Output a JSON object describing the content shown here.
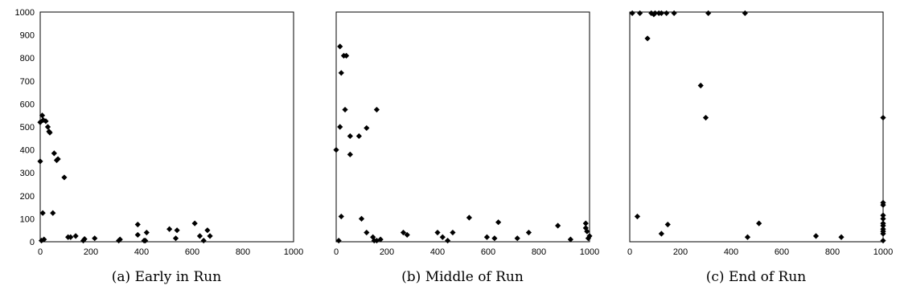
{
  "chart_data": [
    {
      "type": "scatter",
      "caption": "(a) Early in Run",
      "xlim": [
        0,
        1000
      ],
      "ylim": [
        0,
        1000
      ],
      "x_ticks": [
        "0",
        "200",
        "400",
        "600",
        "800",
        "1000"
      ],
      "y_ticks": [
        "0",
        "100",
        "200",
        "300",
        "400",
        "500",
        "600",
        "700",
        "800",
        "900",
        "1000"
      ],
      "marker": "diamond",
      "points": [
        [
          0,
          520
        ],
        [
          8,
          550
        ],
        [
          12,
          530
        ],
        [
          22,
          525
        ],
        [
          30,
          500
        ],
        [
          35,
          480
        ],
        [
          38,
          475
        ],
        [
          0,
          350
        ],
        [
          10,
          125
        ],
        [
          50,
          125
        ],
        [
          55,
          385
        ],
        [
          65,
          355
        ],
        [
          70,
          360
        ],
        [
          95,
          280
        ],
        [
          5,
          5
        ],
        [
          15,
          10
        ],
        [
          110,
          20
        ],
        [
          120,
          20
        ],
        [
          140,
          25
        ],
        [
          170,
          5
        ],
        [
          175,
          12
        ],
        [
          215,
          15
        ],
        [
          310,
          5
        ],
        [
          315,
          10
        ],
        [
          385,
          75
        ],
        [
          385,
          30
        ],
        [
          410,
          5
        ],
        [
          415,
          5
        ],
        [
          420,
          40
        ],
        [
          510,
          55
        ],
        [
          535,
          15
        ],
        [
          540,
          50
        ],
        [
          610,
          80
        ],
        [
          630,
          25
        ],
        [
          645,
          5
        ],
        [
          660,
          50
        ],
        [
          670,
          25
        ]
      ]
    },
    {
      "type": "scatter",
      "caption": "(b) Middle of Run",
      "xlim": [
        0,
        1000
      ],
      "ylim": [
        0,
        1000
      ],
      "x_ticks": [
        "0",
        "200",
        "400",
        "600",
        "800",
        "1000"
      ],
      "marker": "diamond",
      "points": [
        [
          15,
          850
        ],
        [
          30,
          810
        ],
        [
          40,
          810
        ],
        [
          20,
          735
        ],
        [
          35,
          575
        ],
        [
          160,
          575
        ],
        [
          15,
          500
        ],
        [
          120,
          495
        ],
        [
          55,
          460
        ],
        [
          90,
          460
        ],
        [
          0,
          400
        ],
        [
          55,
          380
        ],
        [
          20,
          110
        ],
        [
          100,
          100
        ],
        [
          10,
          5
        ],
        [
          120,
          40
        ],
        [
          145,
          20
        ],
        [
          150,
          5
        ],
        [
          160,
          5
        ],
        [
          175,
          10
        ],
        [
          265,
          40
        ],
        [
          280,
          30
        ],
        [
          400,
          40
        ],
        [
          420,
          20
        ],
        [
          440,
          5
        ],
        [
          460,
          40
        ],
        [
          525,
          105
        ],
        [
          595,
          20
        ],
        [
          625,
          15
        ],
        [
          640,
          85
        ],
        [
          715,
          15
        ],
        [
          760,
          40
        ],
        [
          875,
          70
        ],
        [
          925,
          10
        ],
        [
          985,
          80
        ],
        [
          985,
          60
        ],
        [
          990,
          45
        ],
        [
          995,
          15
        ],
        [
          1000,
          25
        ]
      ]
    },
    {
      "type": "scatter",
      "caption": "(c) End of Run",
      "xlim": [
        0,
        1000
      ],
      "ylim": [
        0,
        1000
      ],
      "x_ticks": [
        "0",
        "200",
        "400",
        "600",
        "800",
        "1000"
      ],
      "marker": "diamond",
      "points": [
        [
          10,
          995
        ],
        [
          40,
          995
        ],
        [
          85,
          995
        ],
        [
          95,
          990
        ],
        [
          100,
          995
        ],
        [
          115,
          995
        ],
        [
          125,
          995
        ],
        [
          145,
          995
        ],
        [
          175,
          995
        ],
        [
          310,
          995
        ],
        [
          455,
          995
        ],
        [
          70,
          885
        ],
        [
          280,
          680
        ],
        [
          300,
          540
        ],
        [
          1000,
          540
        ],
        [
          30,
          110
        ],
        [
          125,
          35
        ],
        [
          150,
          75
        ],
        [
          465,
          20
        ],
        [
          510,
          80
        ],
        [
          735,
          25
        ],
        [
          835,
          20
        ],
        [
          1000,
          170
        ],
        [
          1000,
          160
        ],
        [
          1000,
          115
        ],
        [
          1000,
          100
        ],
        [
          1000,
          80
        ],
        [
          1000,
          70
        ],
        [
          1000,
          55
        ],
        [
          1000,
          45
        ],
        [
          1000,
          35
        ],
        [
          1000,
          5
        ]
      ]
    }
  ]
}
